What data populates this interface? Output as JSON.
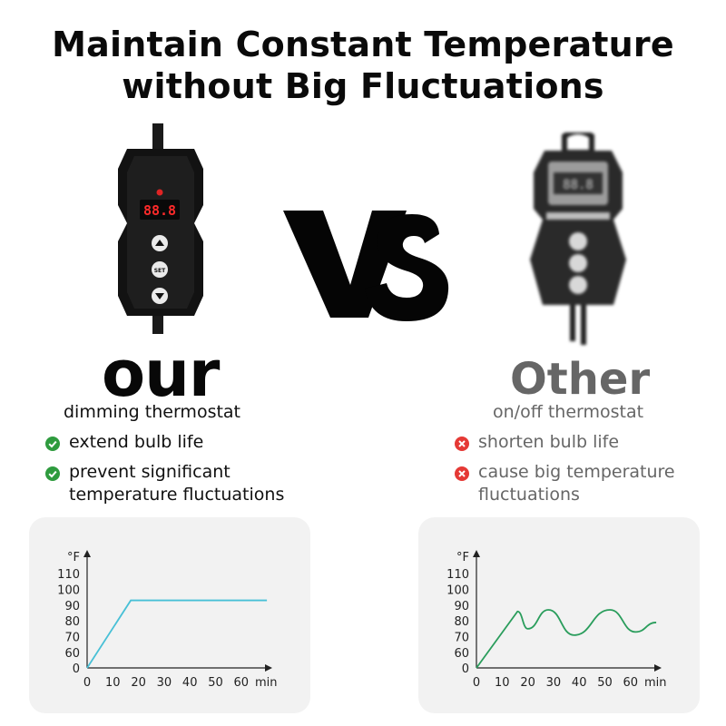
{
  "title": {
    "line1": "Maintain Constant Temperature",
    "line2": "without Big Fluctuations"
  },
  "vs_label": "VS",
  "ours": {
    "device": {
      "display": "88.8",
      "buttons": [
        "▲",
        "SET",
        "▼"
      ]
    },
    "label": "our",
    "subtitle": "dimming thermostat",
    "features": [
      {
        "icon": "check-icon",
        "lines": [
          "extend bulb life"
        ]
      },
      {
        "icon": "check-icon",
        "lines": [
          "prevent significant",
          "temperature fluctuations"
        ]
      }
    ]
  },
  "other": {
    "device": {
      "display": "88.8"
    },
    "label": "Other",
    "subtitle": "on/off thermostat",
    "features": [
      {
        "icon": "x-icon",
        "lines": [
          "shorten bulb life"
        ]
      },
      {
        "icon": "x-icon",
        "lines": [
          "cause big temperature",
          "fluctuations"
        ]
      }
    ]
  },
  "colors": {
    "check": "#2e9b3e",
    "cross": "#e53935",
    "ours_line": "#48c0d6",
    "other_line": "#2a9d5c",
    "grey_text": "#666666"
  },
  "chart_data": [
    {
      "type": "line",
      "unit_label": "°F",
      "x_unit_label": "min",
      "x_ticks": [
        0,
        10,
        20,
        30,
        40,
        50,
        60
      ],
      "y_ticks": [
        0,
        60,
        70,
        80,
        90,
        100,
        110
      ],
      "y_scale_note": "broken axis: 0 then 60–110",
      "series": [
        {
          "x": [
            0,
            17,
            70
          ],
          "y": [
            0,
            93,
            93
          ]
        }
      ]
    },
    {
      "type": "line",
      "unit_label": "°F",
      "x_unit_label": "min",
      "x_ticks": [
        0,
        10,
        20,
        30,
        40,
        50,
        60
      ],
      "y_ticks": [
        0,
        60,
        70,
        80,
        90,
        100,
        110
      ],
      "y_scale_note": "broken axis: 0 then 60–110",
      "series": [
        {
          "x": [
            0,
            16,
            20,
            28,
            38,
            52,
            62,
            70
          ],
          "y": [
            0,
            86,
            75,
            87,
            71,
            87,
            73,
            79
          ]
        }
      ]
    }
  ]
}
